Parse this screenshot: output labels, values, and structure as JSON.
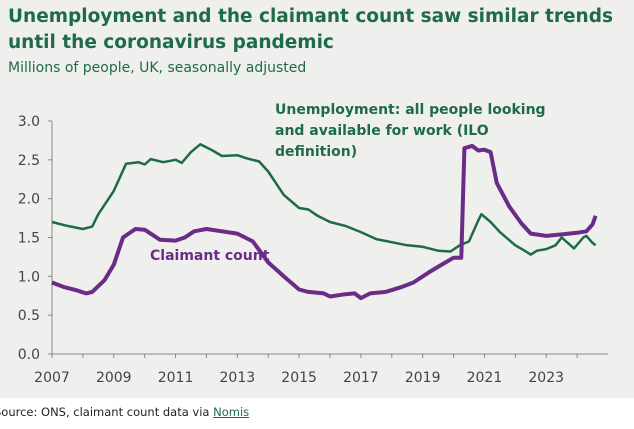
{
  "title": "Unemployment and the claimant count saw similar trends until the coronavirus pandemic",
  "subtitle": "Millions of people, UK, seasonally adjusted",
  "source_prefix": "Source: ONS, claimant count data via ",
  "source_link": "Nomis",
  "colors": {
    "unemployment": "#1e6b47",
    "claimant": "#6a2c86",
    "background": "#efefed",
    "axis": "#888888"
  },
  "chart_data": {
    "type": "line",
    "title": "Unemployment and the claimant count saw similar trends until the coronavirus pandemic",
    "ylabel": "Millions of people, UK, seasonally adjusted",
    "xlim": [
      2007,
      2025
    ],
    "ylim": [
      0,
      3.0
    ],
    "xticks": [
      "2007",
      "2009",
      "2011",
      "2013",
      "2015",
      "2017",
      "2019",
      "2021",
      "2023"
    ],
    "yticks": [
      "0.0",
      "0.5",
      "1.0",
      "1.5",
      "2.0",
      "2.5",
      "3.0"
    ],
    "grid": false,
    "series": [
      {
        "name": "Unemployment: all people looking and available for work (ILO definition)",
        "x": [
          2007.0,
          2007.5,
          2008.0,
          2008.3,
          2008.5,
          2009.0,
          2009.4,
          2009.8,
          2010.0,
          2010.2,
          2010.6,
          2011.0,
          2011.2,
          2011.5,
          2011.8,
          2012.2,
          2012.5,
          2013.0,
          2013.3,
          2013.7,
          2014.0,
          2014.5,
          2015.0,
          2015.3,
          2015.6,
          2016.0,
          2016.5,
          2017.0,
          2017.5,
          2018.0,
          2018.5,
          2019.0,
          2019.5,
          2019.9,
          2020.2,
          2020.5,
          2020.8,
          2020.9,
          2021.2,
          2021.5,
          2022.0,
          2022.3,
          2022.5,
          2022.7,
          2023.0,
          2023.3,
          2023.5,
          2023.9,
          2024.2,
          2024.3,
          2024.5,
          2024.6
        ],
        "values": [
          1.7,
          1.65,
          1.61,
          1.64,
          1.8,
          2.1,
          2.45,
          2.47,
          2.44,
          2.51,
          2.47,
          2.5,
          2.46,
          2.6,
          2.7,
          2.62,
          2.55,
          2.56,
          2.52,
          2.48,
          2.35,
          2.05,
          1.88,
          1.86,
          1.78,
          1.7,
          1.65,
          1.57,
          1.48,
          1.44,
          1.4,
          1.38,
          1.33,
          1.32,
          1.4,
          1.45,
          1.72,
          1.8,
          1.7,
          1.57,
          1.4,
          1.33,
          1.28,
          1.33,
          1.35,
          1.4,
          1.5,
          1.36,
          1.5,
          1.52,
          1.43,
          1.4
        ]
      },
      {
        "name": "Claimant count",
        "x": [
          2007.0,
          2007.4,
          2007.8,
          2008.1,
          2008.3,
          2008.7,
          2009.0,
          2009.3,
          2009.7,
          2010.0,
          2010.5,
          2011.0,
          2011.3,
          2011.6,
          2012.0,
          2012.5,
          2013.0,
          2013.5,
          2014.0,
          2014.5,
          2015.0,
          2015.3,
          2015.8,
          2016.0,
          2016.5,
          2016.8,
          2017.0,
          2017.3,
          2017.8,
          2018.3,
          2018.7,
          2019.2,
          2019.7,
          2020.0,
          2020.25,
          2020.35,
          2020.6,
          2020.8,
          2021.0,
          2021.2,
          2021.4,
          2021.8,
          2022.2,
          2022.5,
          2023.0,
          2023.5,
          2024.0,
          2024.3,
          2024.5,
          2024.6
        ],
        "values": [
          0.92,
          0.86,
          0.82,
          0.78,
          0.8,
          0.95,
          1.15,
          1.5,
          1.61,
          1.6,
          1.47,
          1.46,
          1.5,
          1.58,
          1.61,
          1.58,
          1.55,
          1.45,
          1.18,
          1.0,
          0.83,
          0.8,
          0.78,
          0.74,
          0.77,
          0.78,
          0.72,
          0.78,
          0.8,
          0.86,
          0.92,
          1.05,
          1.17,
          1.24,
          1.24,
          2.65,
          2.68,
          2.62,
          2.63,
          2.6,
          2.2,
          1.9,
          1.68,
          1.55,
          1.52,
          1.54,
          1.56,
          1.58,
          1.67,
          1.78
        ]
      }
    ],
    "annotations": [
      "Unemployment: all people looking",
      "and available for work (ILO",
      "definition)",
      "Claimant count"
    ]
  }
}
